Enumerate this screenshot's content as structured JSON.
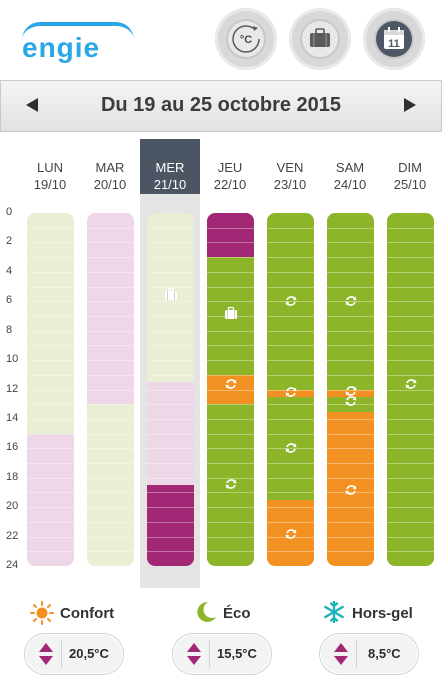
{
  "header": {
    "logo_text": "engie",
    "buttons": [
      {
        "name": "temperature",
        "icon": "thermometer-celsius-icon",
        "label": "°C"
      },
      {
        "name": "absence",
        "icon": "suitcase-icon"
      },
      {
        "name": "calendar",
        "icon": "calendar-icon",
        "label": "11"
      }
    ]
  },
  "week": {
    "label": "Du 19 au 25 octobre 2015",
    "prev_icon": "triangle-left-icon",
    "next_icon": "triangle-right-icon"
  },
  "y_ticks": [
    "0",
    "2",
    "4",
    "6",
    "8",
    "10",
    "12",
    "14",
    "16",
    "18",
    "20",
    "22",
    "24"
  ],
  "days": [
    {
      "name": "LUN",
      "date": "19/10",
      "selected": false,
      "segments": [
        {
          "from": 0,
          "to": 15,
          "mode": "eco-light"
        },
        {
          "from": 15,
          "to": 24,
          "mode": "confort-light"
        }
      ],
      "markers": []
    },
    {
      "name": "MAR",
      "date": "20/10",
      "selected": false,
      "segments": [
        {
          "from": 0,
          "to": 13,
          "mode": "confort-light"
        },
        {
          "from": 13,
          "to": 24,
          "mode": "eco-light"
        }
      ],
      "markers": []
    },
    {
      "name": "MER",
      "date": "21/10",
      "selected": true,
      "segments": [
        {
          "from": 0,
          "to": 11.5,
          "mode": "eco-light"
        },
        {
          "from": 11.5,
          "to": 18.5,
          "mode": "confort-light"
        },
        {
          "from": 18.5,
          "to": 24,
          "mode": "hors-gel"
        }
      ],
      "markers": [
        {
          "at": 5.5,
          "icon": "suitcase-icon"
        }
      ]
    },
    {
      "name": "JEU",
      "date": "22/10",
      "selected": false,
      "segments": [
        {
          "from": 0,
          "to": 3,
          "mode": "hors-gel"
        },
        {
          "from": 3,
          "to": 11,
          "mode": "eco"
        },
        {
          "from": 11,
          "to": 13,
          "mode": "confort"
        },
        {
          "from": 13,
          "to": 24,
          "mode": "eco"
        }
      ],
      "markers": [
        {
          "at": 6.8,
          "icon": "suitcase-icon"
        },
        {
          "at": 11.6,
          "icon": "cycle-icon"
        },
        {
          "at": 18.4,
          "icon": "cycle-icon"
        }
      ]
    },
    {
      "name": "VEN",
      "date": "23/10",
      "selected": false,
      "segments": [
        {
          "from": 0,
          "to": 12,
          "mode": "eco"
        },
        {
          "from": 12,
          "to": 12.5,
          "mode": "confort"
        },
        {
          "from": 12.5,
          "to": 19.5,
          "mode": "eco"
        },
        {
          "from": 19.5,
          "to": 24,
          "mode": "confort"
        }
      ],
      "markers": [
        {
          "at": 6,
          "icon": "cycle-icon"
        },
        {
          "at": 12.2,
          "icon": "cycle-icon"
        },
        {
          "at": 16,
          "icon": "cycle-icon"
        },
        {
          "at": 21.8,
          "icon": "cycle-icon"
        }
      ]
    },
    {
      "name": "SAM",
      "date": "24/10",
      "selected": false,
      "segments": [
        {
          "from": 0,
          "to": 12,
          "mode": "eco"
        },
        {
          "from": 12,
          "to": 12.5,
          "mode": "confort"
        },
        {
          "from": 12.5,
          "to": 13.5,
          "mode": "eco"
        },
        {
          "from": 13.5,
          "to": 24,
          "mode": "confort"
        }
      ],
      "markers": [
        {
          "at": 6,
          "icon": "cycle-icon"
        },
        {
          "at": 12.1,
          "icon": "cycle-icon"
        },
        {
          "at": 12.8,
          "icon": "cycle-icon"
        },
        {
          "at": 18.8,
          "icon": "cycle-icon"
        }
      ]
    },
    {
      "name": "DIM",
      "date": "25/10",
      "selected": false,
      "segments": [
        {
          "from": 0,
          "to": 24,
          "mode": "eco"
        }
      ],
      "markers": [
        {
          "at": 11.6,
          "icon": "cycle-icon"
        }
      ]
    }
  ],
  "colors": {
    "eco": "#8cb52a",
    "eco-light": "#e8efd5",
    "confort": "#f29121",
    "confort-light": "#eed8e8",
    "hors-gel": "#a22876",
    "selected-header": "#4b5563",
    "accent-arrows": "#a22876"
  },
  "legend": {
    "confort": {
      "label": "Confort",
      "icon": "sun-icon",
      "value": "20,5°C"
    },
    "eco": {
      "label": "Éco",
      "icon": "moon-icon",
      "value": "15,5°C"
    },
    "horsgel": {
      "label": "Hors-gel",
      "icon": "snowflake-icon",
      "value": "8,5°C"
    }
  }
}
